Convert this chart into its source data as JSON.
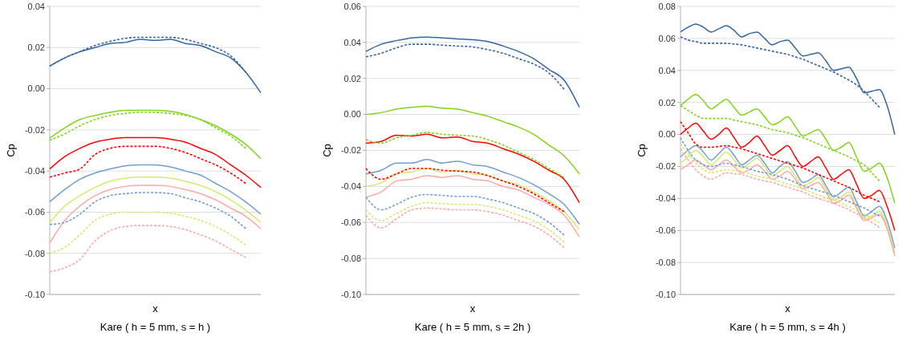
{
  "chart_data": [
    {
      "type": "line",
      "title": "Kare ( h = 5 mm, s = h )",
      "xlabel": "x",
      "ylabel": "Cp",
      "grid": "y",
      "categories": [
        null,
        null,
        null,
        null,
        null,
        null,
        null,
        null,
        null,
        null,
        null,
        null,
        null,
        null,
        null
      ],
      "ylim": [
        -0.1,
        0.04
      ],
      "yticks": [
        {
          "value": -0.1,
          "label": "-0.10"
        },
        {
          "value": -0.08,
          "label": "-0.08"
        },
        {
          "value": -0.06,
          "label": "-0.06"
        },
        {
          "value": -0.04,
          "label": "-0.04"
        },
        {
          "value": -0.02,
          "label": "-0.02"
        },
        {
          "value": 0,
          "label": "0.00"
        },
        {
          "value": 0.02,
          "label": "0.02"
        },
        {
          "value": 0.04,
          "label": "0.04"
        }
      ],
      "series": [
        {
          "color": "#3465a4",
          "line_style": "solid",
          "values": [
            0.011,
            0.015,
            0.018,
            0.02,
            0.022,
            0.0225,
            0.024,
            0.0235,
            0.024,
            0.022,
            0.021,
            0.018,
            0.015,
            0.008,
            -0.002
          ]
        },
        {
          "color": "#3465a4",
          "line_style": "dashed",
          "values": [
            0.011,
            0.015,
            0.018,
            0.021,
            0.023,
            0.0245,
            0.025,
            0.025,
            0.025,
            0.024,
            0.022,
            0.02,
            0.016,
            0.008,
            null
          ]
        },
        {
          "color": "#81d41a",
          "line_style": "solid",
          "values": [
            -0.024,
            -0.019,
            -0.015,
            -0.013,
            -0.0115,
            -0.0105,
            -0.0105,
            -0.0105,
            -0.011,
            -0.0125,
            -0.015,
            -0.018,
            -0.022,
            -0.027,
            -0.034
          ]
        },
        {
          "color": "#81d41a",
          "line_style": "dashed",
          "values": [
            -0.025,
            -0.022,
            -0.018,
            -0.015,
            -0.013,
            -0.012,
            -0.0115,
            -0.0115,
            -0.012,
            -0.013,
            -0.015,
            -0.019,
            -0.023,
            -0.029,
            null
          ]
        },
        {
          "color": "#ff0000",
          "line_style": "solid",
          "values": [
            -0.039,
            -0.033,
            -0.029,
            -0.026,
            -0.0245,
            -0.0238,
            -0.0238,
            -0.0238,
            -0.0245,
            -0.026,
            -0.029,
            -0.032,
            -0.037,
            -0.042,
            -0.048
          ]
        },
        {
          "color": "#ff0000",
          "line_style": "dashed",
          "values": [
            -0.043,
            -0.041,
            -0.039,
            -0.032,
            -0.029,
            -0.028,
            -0.028,
            -0.028,
            -0.029,
            -0.031,
            -0.034,
            -0.037,
            -0.041,
            -0.046,
            null
          ]
        },
        {
          "color": "#729fcf",
          "line_style": "solid",
          "values": [
            -0.055,
            -0.049,
            -0.044,
            -0.041,
            -0.039,
            -0.0375,
            -0.037,
            -0.037,
            -0.038,
            -0.04,
            -0.042,
            -0.046,
            -0.05,
            -0.055,
            -0.061
          ]
        },
        {
          "color": "#d4ea6b",
          "line_style": "solid",
          "values": [
            -0.065,
            -0.057,
            -0.052,
            -0.048,
            -0.045,
            -0.0435,
            -0.043,
            -0.043,
            -0.0435,
            -0.045,
            -0.047,
            -0.05,
            -0.054,
            -0.059,
            -0.065
          ]
        },
        {
          "color": "#ffa6a6",
          "line_style": "solid",
          "values": [
            -0.075,
            -0.064,
            -0.057,
            -0.052,
            -0.049,
            -0.0475,
            -0.047,
            -0.047,
            -0.0475,
            -0.049,
            -0.051,
            -0.054,
            -0.058,
            -0.062,
            -0.068
          ]
        },
        {
          "color": "#729fcf",
          "line_style": "dashed",
          "values": [
            -0.066,
            -0.065,
            -0.061,
            -0.055,
            -0.052,
            -0.051,
            -0.0505,
            -0.0505,
            -0.051,
            -0.053,
            -0.055,
            -0.058,
            -0.062,
            -0.068,
            null
          ]
        },
        {
          "color": "#d4ea6b",
          "line_style": "dashed",
          "values": [
            -0.08,
            -0.077,
            -0.071,
            -0.064,
            -0.061,
            -0.06,
            -0.06,
            -0.06,
            -0.0605,
            -0.062,
            -0.064,
            -0.067,
            -0.071,
            -0.076,
            null
          ]
        },
        {
          "color": "#ffa6a6",
          "line_style": "dashed",
          "values": [
            -0.089,
            -0.087,
            -0.083,
            -0.074,
            -0.069,
            -0.067,
            -0.0665,
            -0.0665,
            -0.067,
            -0.0685,
            -0.071,
            -0.074,
            -0.078,
            -0.082,
            null
          ]
        }
      ]
    },
    {
      "type": "line",
      "title": "Kare ( h = 5 mm, s = 2h )",
      "xlabel": "x",
      "ylabel": "Cp",
      "grid": "y",
      "categories": [
        null,
        null,
        null,
        null,
        null,
        null,
        null,
        null,
        null,
        null,
        null,
        null,
        null,
        null,
        null
      ],
      "ylim": [
        -0.1,
        0.06
      ],
      "yticks": [
        {
          "value": -0.1,
          "label": "-0.10"
        },
        {
          "value": -0.08,
          "label": "-0.08"
        },
        {
          "value": -0.06,
          "label": "-0.06"
        },
        {
          "value": -0.04,
          "label": "-0.04"
        },
        {
          "value": -0.02,
          "label": "-0.02"
        },
        {
          "value": 0,
          "label": "0.00"
        },
        {
          "value": 0.02,
          "label": "0.02"
        },
        {
          "value": 0.04,
          "label": "0.04"
        },
        {
          "value": 0.06,
          "label": "0.06"
        }
      ],
      "series": [
        {
          "color": "#3465a4",
          "line_style": "solid",
          "values": [
            0.035,
            0.039,
            0.041,
            0.0425,
            0.043,
            0.0425,
            0.042,
            0.0415,
            0.0405,
            0.038,
            0.035,
            0.031,
            0.025,
            0.019,
            0.004
          ]
        },
        {
          "color": "#3465a4",
          "line_style": "dashed",
          "values": [
            0.032,
            0.034,
            0.037,
            0.039,
            0.039,
            0.0385,
            0.038,
            0.0375,
            0.036,
            0.034,
            0.031,
            0.028,
            0.023,
            0.014,
            null
          ]
        },
        {
          "color": "#81d41a",
          "line_style": "solid",
          "values": [
            0,
            0.001,
            0.003,
            0.004,
            0.0045,
            0.0035,
            0.003,
            0.001,
            -0.001,
            -0.004,
            -0.007,
            -0.011,
            -0.017,
            -0.023,
            -0.033
          ]
        },
        {
          "color": "#81d41a",
          "line_style": "dashed",
          "values": [
            -0.014,
            -0.016,
            -0.013,
            -0.0115,
            -0.01,
            -0.011,
            -0.0115,
            -0.012,
            -0.014,
            -0.017,
            -0.021,
            -0.025,
            -0.03,
            -0.035,
            null
          ]
        },
        {
          "color": "#ff0000",
          "line_style": "solid",
          "values": [
            -0.016,
            -0.015,
            -0.0115,
            -0.012,
            -0.011,
            -0.013,
            -0.0125,
            -0.015,
            -0.016,
            -0.019,
            -0.022,
            -0.026,
            -0.031,
            -0.036,
            -0.049
          ]
        },
        {
          "color": "#ff0000",
          "line_style": "dashed",
          "values": [
            -0.03,
            -0.036,
            -0.033,
            -0.03,
            -0.03,
            -0.031,
            -0.0315,
            -0.032,
            -0.034,
            -0.037,
            -0.04,
            -0.044,
            -0.049,
            -0.054,
            null
          ]
        },
        {
          "color": "#729fcf",
          "line_style": "solid",
          "values": [
            -0.033,
            -0.031,
            -0.027,
            -0.027,
            -0.025,
            -0.027,
            -0.026,
            -0.028,
            -0.029,
            -0.032,
            -0.035,
            -0.039,
            -0.044,
            -0.05,
            -0.061
          ]
        },
        {
          "color": "#d4ea6b",
          "line_style": "solid",
          "values": [
            -0.04,
            -0.038,
            -0.033,
            -0.032,
            -0.03,
            -0.032,
            -0.031,
            -0.033,
            -0.034,
            -0.037,
            -0.039,
            -0.043,
            -0.048,
            -0.054,
            -0.064
          ]
        },
        {
          "color": "#ffa6a6",
          "line_style": "solid",
          "values": [
            -0.046,
            -0.043,
            -0.037,
            -0.036,
            -0.034,
            -0.035,
            -0.034,
            -0.036,
            -0.037,
            -0.04,
            -0.042,
            -0.046,
            -0.05,
            -0.056,
            -0.068
          ]
        },
        {
          "color": "#729fcf",
          "line_style": "dashed",
          "values": [
            -0.046,
            -0.053,
            -0.05,
            -0.046,
            -0.0445,
            -0.045,
            -0.0455,
            -0.0455,
            -0.047,
            -0.049,
            -0.052,
            -0.055,
            -0.06,
            -0.067,
            null
          ]
        },
        {
          "color": "#d4ea6b",
          "line_style": "dashed",
          "values": [
            -0.053,
            -0.059,
            -0.055,
            -0.051,
            -0.049,
            -0.0495,
            -0.05,
            -0.05,
            -0.051,
            -0.053,
            -0.056,
            -0.059,
            -0.064,
            -0.071,
            null
          ]
        },
        {
          "color": "#ffa6a6",
          "line_style": "dashed",
          "values": [
            -0.056,
            -0.063,
            -0.058,
            -0.053,
            -0.052,
            -0.0525,
            -0.053,
            -0.053,
            -0.054,
            -0.056,
            -0.059,
            -0.062,
            -0.067,
            -0.074,
            null
          ]
        }
      ]
    },
    {
      "type": "line",
      "title": "Kare ( h = 5 mm, s = 4h )",
      "xlabel": "x",
      "ylabel": "Cp",
      "grid": "y",
      "categories": [
        null,
        null,
        null,
        null,
        null,
        null,
        null,
        null,
        null,
        null,
        null,
        null,
        null,
        null,
        null,
        null,
        null,
        null,
        null,
        null,
        null,
        null,
        null,
        null,
        null,
        null,
        null,
        null,
        null
      ],
      "ylim": [
        -0.1,
        0.08
      ],
      "yticks": [
        {
          "value": -0.1,
          "label": "-0.10"
        },
        {
          "value": -0.08,
          "label": "-0.08"
        },
        {
          "value": -0.06,
          "label": "-0.06"
        },
        {
          "value": -0.04,
          "label": "-0.04"
        },
        {
          "value": -0.02,
          "label": "-0.02"
        },
        {
          "value": 0,
          "label": "0.00"
        },
        {
          "value": 0.02,
          "label": "0.02"
        },
        {
          "value": 0.04,
          "label": "0.04"
        },
        {
          "value": 0.06,
          "label": "0.06"
        },
        {
          "value": 0.08,
          "label": "0.08"
        }
      ],
      "series": [
        {
          "color": "#3465a4",
          "line_style": "solid",
          "values": [
            0.064,
            0.067,
            0.069,
            0.067,
            0.064,
            0.066,
            0.068,
            0.065,
            0.061,
            0.063,
            0.064,
            0.06,
            0.056,
            0.058,
            0.059,
            0.054,
            0.049,
            0.05,
            0.051,
            0.046,
            0.04,
            0.041,
            0.042,
            0.035,
            0.026,
            0.027,
            0.028,
            0.018,
            0
          ]
        },
        {
          "color": "#3465a4",
          "line_style": "dashed",
          "values": [
            0.061,
            0.059,
            0.058,
            0.057,
            0.057,
            0.057,
            0.057,
            0.0565,
            0.056,
            0.055,
            0.054,
            0.053,
            0.052,
            0.051,
            0.05,
            0.0485,
            0.047,
            0.045,
            0.043,
            0.041,
            0.039,
            0.0365,
            0.034,
            0.031,
            0.027,
            0.022,
            0.017,
            null,
            null
          ]
        },
        {
          "color": "#81d41a",
          "line_style": "solid",
          "values": [
            0.018,
            0.022,
            0.025,
            0.021,
            0.016,
            0.019,
            0.022,
            0.017,
            0.012,
            0.014,
            0.016,
            0.011,
            0.006,
            0.008,
            0.011,
            0.005,
            -0.001,
            0.001,
            0.003,
            -0.003,
            -0.01,
            -0.008,
            -0.005,
            -0.014,
            -0.023,
            -0.021,
            -0.018,
            -0.027,
            -0.043
          ]
        },
        {
          "color": "#81d41a",
          "line_style": "dashed",
          "values": [
            0.018,
            0.015,
            0.012,
            0.01,
            0.01,
            0.01,
            0.01,
            0.009,
            0.008,
            0.007,
            0.006,
            0.0045,
            0.003,
            0.002,
            0.001,
            -0.0005,
            -0.002,
            -0.004,
            -0.006,
            -0.008,
            -0.01,
            -0.012,
            -0.014,
            -0.0165,
            -0.019,
            -0.024,
            -0.029,
            null,
            null
          ]
        },
        {
          "color": "#ff0000",
          "line_style": "solid",
          "values": [
            0,
            0.004,
            0.007,
            0.002,
            -0.003,
            0,
            0.004,
            -0.002,
            -0.008,
            -0.005,
            -0.001,
            -0.007,
            -0.013,
            -0.01,
            -0.007,
            -0.014,
            -0.02,
            -0.017,
            -0.014,
            -0.021,
            -0.028,
            -0.025,
            -0.022,
            -0.031,
            -0.04,
            -0.038,
            -0.035,
            -0.045,
            -0.06
          ]
        },
        {
          "color": "#ff0000",
          "line_style": "dashed",
          "values": [
            0.008,
            0.001,
            -0.006,
            -0.008,
            -0.008,
            -0.0075,
            -0.007,
            -0.008,
            -0.009,
            -0.0105,
            -0.012,
            -0.0135,
            -0.015,
            -0.0165,
            -0.018,
            -0.0195,
            -0.021,
            -0.023,
            -0.025,
            -0.027,
            -0.029,
            -0.031,
            -0.033,
            -0.0355,
            -0.038,
            -0.04,
            -0.042,
            null,
            null
          ]
        },
        {
          "color": "#729fcf",
          "line_style": "solid",
          "values": [
            -0.014,
            -0.01,
            -0.007,
            -0.011,
            -0.016,
            -0.012,
            -0.008,
            -0.013,
            -0.019,
            -0.016,
            -0.013,
            -0.018,
            -0.024,
            -0.02,
            -0.017,
            -0.023,
            -0.03,
            -0.028,
            -0.025,
            -0.032,
            -0.039,
            -0.036,
            -0.033,
            -0.042,
            -0.051,
            -0.048,
            -0.045,
            -0.054,
            -0.071
          ]
        },
        {
          "color": "#d4ea6b",
          "line_style": "solid",
          "values": [
            -0.018,
            -0.014,
            -0.01,
            -0.014,
            -0.019,
            -0.015,
            -0.011,
            -0.016,
            -0.021,
            -0.018,
            -0.015,
            -0.02,
            -0.026,
            -0.023,
            -0.02,
            -0.026,
            -0.032,
            -0.03,
            -0.027,
            -0.034,
            -0.041,
            -0.039,
            -0.036,
            -0.045,
            -0.053,
            -0.051,
            -0.048,
            -0.057,
            -0.074
          ]
        },
        {
          "color": "#ffa6a6",
          "line_style": "solid",
          "values": [
            -0.022,
            -0.019,
            -0.016,
            -0.019,
            -0.022,
            -0.019,
            -0.016,
            -0.02,
            -0.024,
            -0.022,
            -0.019,
            -0.023,
            -0.028,
            -0.026,
            -0.023,
            -0.028,
            -0.034,
            -0.032,
            -0.03,
            -0.036,
            -0.043,
            -0.041,
            -0.038,
            -0.046,
            -0.054,
            -0.052,
            -0.05,
            -0.059,
            -0.076
          ]
        },
        {
          "color": "#729fcf",
          "line_style": "dashed",
          "values": [
            -0.002,
            -0.01,
            -0.016,
            -0.019,
            -0.02,
            -0.019,
            -0.018,
            -0.019,
            -0.02,
            -0.0215,
            -0.023,
            -0.024,
            -0.025,
            -0.0265,
            -0.028,
            -0.03,
            -0.032,
            -0.0335,
            -0.035,
            -0.0365,
            -0.038,
            -0.04,
            -0.042,
            -0.044,
            -0.046,
            -0.0485,
            -0.051,
            null,
            null
          ]
        },
        {
          "color": "#d4ea6b",
          "line_style": "dashed",
          "values": [
            -0.006,
            -0.012,
            -0.018,
            -0.022,
            -0.024,
            -0.023,
            -0.022,
            -0.0225,
            -0.023,
            -0.0245,
            -0.026,
            -0.027,
            -0.028,
            -0.0295,
            -0.031,
            -0.0325,
            -0.034,
            -0.036,
            -0.038,
            -0.0395,
            -0.041,
            -0.043,
            -0.045,
            -0.0475,
            -0.05,
            -0.0525,
            -0.055,
            null,
            null
          ]
        },
        {
          "color": "#ffa6a6",
          "line_style": "dashed",
          "values": [
            -0.009,
            -0.016,
            -0.022,
            -0.026,
            -0.028,
            -0.026,
            -0.024,
            -0.0245,
            -0.025,
            -0.0265,
            -0.028,
            -0.029,
            -0.03,
            -0.0315,
            -0.033,
            -0.0345,
            -0.036,
            -0.038,
            -0.04,
            -0.0415,
            -0.043,
            -0.045,
            -0.047,
            -0.0495,
            -0.052,
            -0.055,
            -0.058,
            null,
            null
          ]
        }
      ]
    }
  ]
}
